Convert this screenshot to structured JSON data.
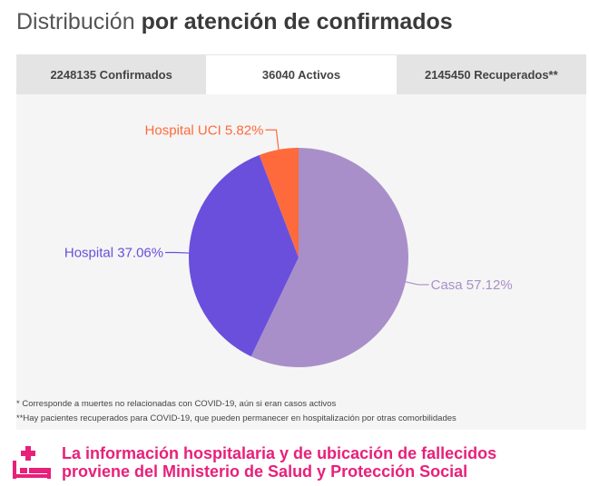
{
  "title": {
    "light": "Distribución",
    "bold": "por atención de confirmados"
  },
  "tabs": [
    {
      "label": "2248135 Confirmados",
      "active": false
    },
    {
      "label": "36040 Activos",
      "active": true
    },
    {
      "label": "2145450 Recuperados**",
      "active": false
    }
  ],
  "chart_data": {
    "type": "pie",
    "title": "",
    "slices": [
      {
        "name": "Casa",
        "value": 57.12,
        "label": "Casa 57.12%",
        "color": "#a98fc9"
      },
      {
        "name": "Hospital",
        "value": 37.06,
        "label": "Hospital 37.06%",
        "color": "#6a4fdc"
      },
      {
        "name": "Hospital UCI",
        "value": 5.82,
        "label": "Hospital UCI 5.82%",
        "color": "#ff6a3d"
      }
    ]
  },
  "notes": [
    "* Corresponde a muertes no relacionadas con COVID-19, aún si eran casos activos",
    "**Hay pacientes recuperados para COVID-19, que pueden permanecer en hospitalización por otras comorbilidades"
  ],
  "footer": {
    "line1": "La información hospitalaria y de ubicación de fallecidos",
    "line2": "proviene del Ministerio de Salud y Protección Social",
    "icon": "hospital-bed-icon",
    "color": "#e8207a"
  }
}
